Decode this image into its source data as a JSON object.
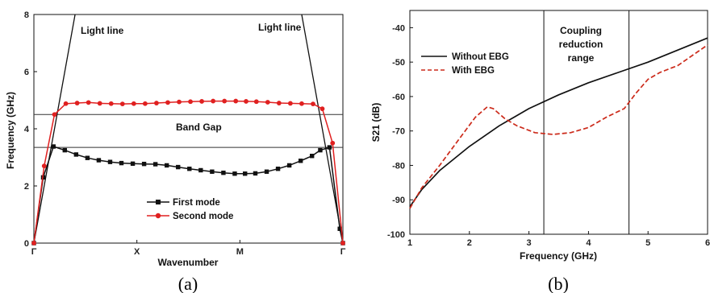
{
  "chart_data": [
    {
      "type": "line",
      "caption": "(a)",
      "xlabel": "Wavenumber",
      "ylabel": "Frequency (GHz)",
      "ylim": [
        0,
        8
      ],
      "yticks": [
        0,
        2,
        4,
        6,
        8
      ],
      "xticks": [
        "Γ",
        "X",
        "M",
        "Γ"
      ],
      "x_tick_positions": [
        0,
        1,
        2,
        3
      ],
      "xlim": [
        0,
        3
      ],
      "annotations": [
        "Light line",
        "Light line",
        "Band Gap"
      ],
      "band_gap": [
        3.35,
        4.5
      ],
      "light_line": [
        {
          "x": [
            0,
            0.4
          ],
          "y": [
            0,
            8
          ]
        },
        {
          "x": [
            2.6,
            3
          ],
          "y": [
            8,
            0
          ]
        }
      ],
      "series": [
        {
          "name": "First mode",
          "color": "#111111",
          "marker": "square",
          "x": [
            0,
            0.09,
            0.19,
            0.3,
            0.41,
            0.52,
            0.63,
            0.74,
            0.85,
            0.96,
            1.07,
            1.18,
            1.29,
            1.4,
            1.51,
            1.62,
            1.73,
            1.84,
            1.95,
            2.05,
            2.15,
            2.26,
            2.37,
            2.48,
            2.59,
            2.7,
            2.78,
            2.87,
            2.97,
            3
          ],
          "y": [
            0,
            2.3,
            3.38,
            3.25,
            3.1,
            2.98,
            2.9,
            2.84,
            2.8,
            2.78,
            2.77,
            2.76,
            2.72,
            2.66,
            2.6,
            2.55,
            2.5,
            2.46,
            2.43,
            2.43,
            2.44,
            2.5,
            2.6,
            2.72,
            2.88,
            3.05,
            3.25,
            3.35,
            0.5,
            0
          ]
        },
        {
          "name": "Second mode",
          "color": "#e02020",
          "marker": "circle",
          "x": [
            0,
            0.1,
            0.2,
            0.31,
            0.42,
            0.53,
            0.64,
            0.75,
            0.86,
            0.97,
            1.08,
            1.19,
            1.3,
            1.41,
            1.52,
            1.63,
            1.74,
            1.85,
            1.96,
            2.06,
            2.16,
            2.27,
            2.38,
            2.49,
            2.6,
            2.71,
            2.8,
            2.9,
            3
          ],
          "y": [
            0,
            2.7,
            4.5,
            4.88,
            4.9,
            4.92,
            4.89,
            4.88,
            4.87,
            4.88,
            4.88,
            4.9,
            4.92,
            4.94,
            4.95,
            4.96,
            4.97,
            4.97,
            4.97,
            4.96,
            4.95,
            4.93,
            4.9,
            4.89,
            4.88,
            4.87,
            4.7,
            3.5,
            0
          ]
        }
      ]
    },
    {
      "type": "line",
      "caption": "(b)",
      "xlabel": "Frequency (GHz)",
      "ylabel": "S21 (dB)",
      "xlim": [
        1,
        6
      ],
      "ylim": [
        -100,
        -35
      ],
      "xticks": [
        1,
        2,
        3,
        4,
        5,
        6
      ],
      "yticks": [
        -100,
        -90,
        -80,
        -70,
        -60,
        -50,
        -40
      ],
      "annotations": [
        "Coupling",
        "reduction",
        "range"
      ],
      "vlines": [
        3.25,
        4.68
      ],
      "series": [
        {
          "name": "Without EBG",
          "color": "#111111",
          "dash": "solid",
          "x": [
            1,
            1.2,
            1.5,
            2,
            2.5,
            3,
            3.5,
            4,
            4.5,
            5,
            5.5,
            6
          ],
          "y": [
            -92,
            -87,
            -81.5,
            -74.5,
            -68.5,
            -63.5,
            -59.5,
            -56,
            -53,
            -50,
            -46.5,
            -43
          ]
        },
        {
          "name": "With EBG",
          "color": "#cc2a1a",
          "dash": "dashed",
          "x": [
            1,
            1.2,
            1.5,
            1.8,
            2.1,
            2.3,
            2.4,
            2.6,
            2.8,
            3.1,
            3.4,
            3.7,
            4,
            4.3,
            4.6,
            4.8,
            5,
            5.2,
            5.5,
            6
          ],
          "y": [
            -92.5,
            -86.5,
            -80,
            -73,
            -66,
            -63,
            -63.5,
            -66.5,
            -68.5,
            -70.5,
            -71,
            -70.5,
            -69,
            -66,
            -63.5,
            -59,
            -55,
            -53,
            -51,
            -45
          ]
        }
      ]
    }
  ]
}
